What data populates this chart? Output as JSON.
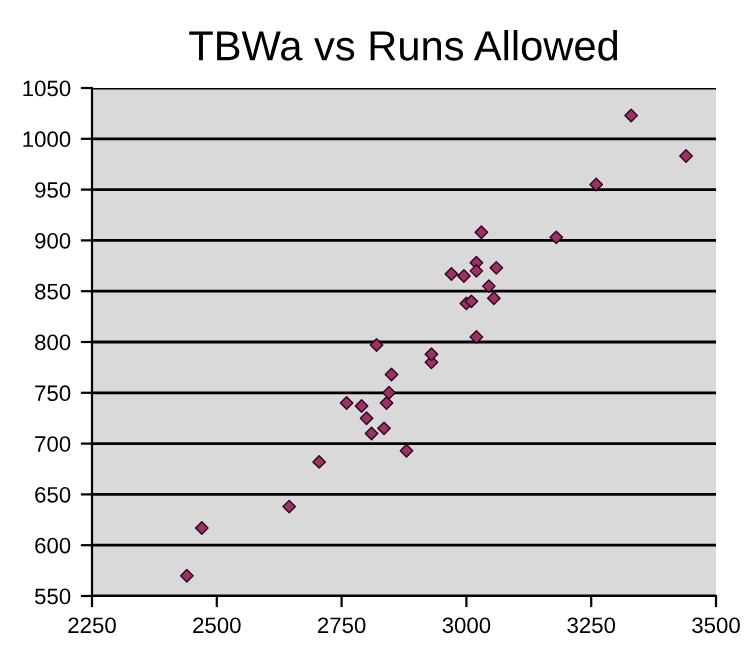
{
  "chart_data": {
    "type": "scatter",
    "title": "TBWa vs Runs Allowed",
    "x": [
      2440,
      2470,
      2645,
      2705,
      2760,
      2790,
      2800,
      2810,
      2820,
      2835,
      2840,
      2845,
      2850,
      2880,
      2930,
      2930,
      2970,
      2995,
      3000,
      3010,
      3020,
      3020,
      3020,
      3030,
      3045,
      3055,
      3060,
      3180,
      3260,
      3330,
      3440
    ],
    "values": [
      570,
      617,
      638,
      682,
      740,
      737,
      725,
      710,
      797,
      715,
      740,
      750,
      768,
      693,
      780,
      788,
      867,
      865,
      838,
      840,
      805,
      878,
      870,
      908,
      855,
      843,
      873,
      903,
      955,
      1023,
      983
    ],
    "color": "#993366",
    "marker": "diamond",
    "xlim": [
      2250,
      3500
    ],
    "xticks": [
      2250,
      2500,
      2750,
      3000,
      3250,
      3500
    ],
    "ylim": [
      550,
      1050
    ],
    "yticks": [
      550,
      600,
      650,
      700,
      750,
      800,
      850,
      900,
      950,
      1000,
      1050
    ],
    "grid": "y"
  }
}
